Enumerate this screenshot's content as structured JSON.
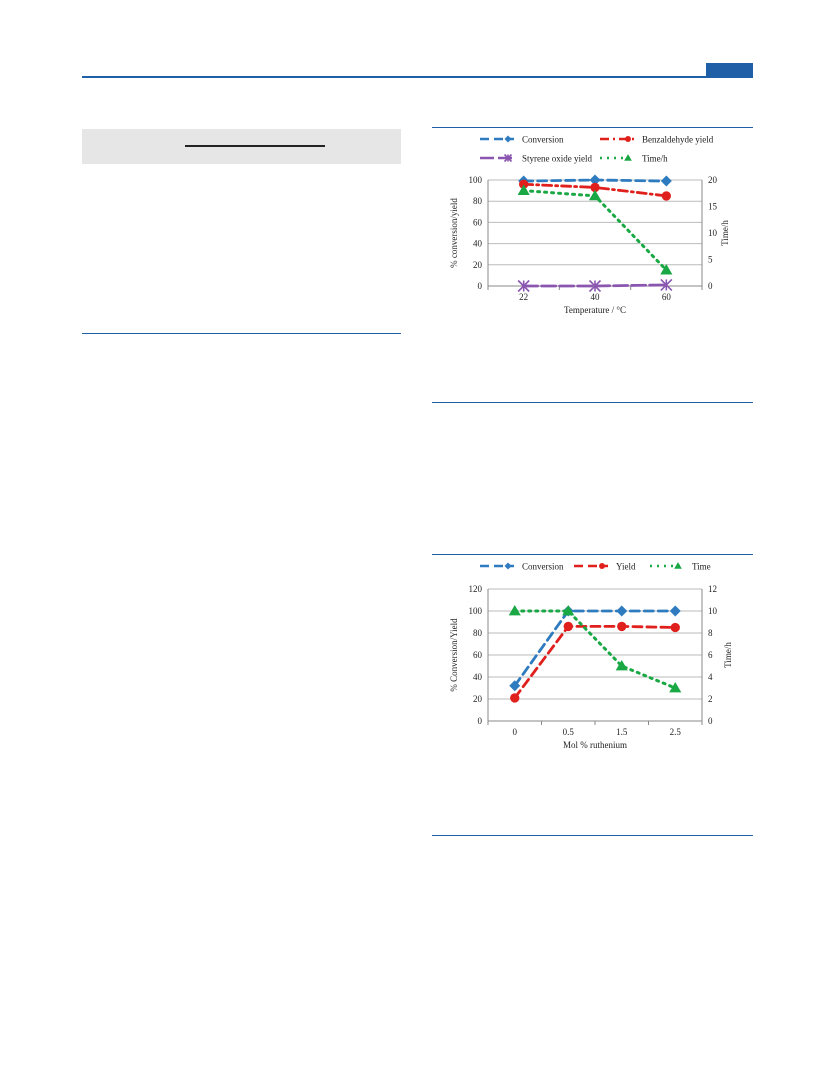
{
  "colors": {
    "accent": "#1f5fa8",
    "conversion": "#2e7bbf",
    "yield": "#e0201c",
    "styrene": "#8a56b0",
    "time": "#1aa845",
    "grid": "#bbbbbb"
  },
  "chart_data": [
    {
      "type": "line",
      "xlabel": "Temperature / °C",
      "ylabel": "% conversion/yield",
      "y2label": "Time/h",
      "categories": [
        "22",
        "40",
        "60"
      ],
      "ylim": [
        0,
        100
      ],
      "yticks": [
        "0",
        "20",
        "40",
        "60",
        "80",
        "100"
      ],
      "y2lim": [
        0,
        20
      ],
      "y2ticks": [
        "0",
        "5",
        "10",
        "15",
        "20"
      ],
      "grid": true,
      "legend_position": "top",
      "legend": [
        "Conversion",
        "Benzaldehyde yield",
        "Styrene oxide yield",
        "Time/h"
      ],
      "series": [
        {
          "name": "Conversion",
          "axis": "left",
          "marker": "diamond",
          "dash": "dash",
          "values": [
            99,
            100,
            99
          ]
        },
        {
          "name": "Benzaldehyde yield",
          "axis": "left",
          "marker": "circle",
          "dash": "dashdot",
          "values": [
            96,
            93,
            85
          ]
        },
        {
          "name": "Styrene oxide yield",
          "axis": "left",
          "marker": "x",
          "dash": "long",
          "values": [
            0,
            0,
            1
          ]
        },
        {
          "name": "Time/h",
          "axis": "right",
          "marker": "triangle",
          "dash": "dot",
          "values": [
            18,
            17,
            3
          ]
        }
      ]
    },
    {
      "type": "line",
      "xlabel": "Mol % ruthenium",
      "ylabel": "% Conversion/Yield",
      "y2label": "Time/h",
      "categories": [
        "0",
        "0.5",
        "1.5",
        "2.5"
      ],
      "ylim": [
        0,
        120
      ],
      "yticks": [
        "0",
        "20",
        "40",
        "60",
        "80",
        "100",
        "120"
      ],
      "y2lim": [
        0,
        12
      ],
      "y2ticks": [
        "0",
        "2",
        "4",
        "6",
        "8",
        "10",
        "12"
      ],
      "grid": true,
      "legend_position": "top",
      "legend": [
        "Conversion",
        "Yield",
        "Time"
      ],
      "series": [
        {
          "name": "Conversion",
          "axis": "left",
          "marker": "diamond",
          "dash": "dash",
          "values": [
            32,
            100,
            100,
            100
          ]
        },
        {
          "name": "Yield",
          "axis": "left",
          "marker": "circle",
          "dash": "dash",
          "values": [
            21,
            86,
            86,
            85
          ]
        },
        {
          "name": "Time",
          "axis": "right",
          "marker": "triangle",
          "dash": "dot",
          "values": [
            10,
            10,
            5,
            3
          ]
        }
      ]
    }
  ]
}
